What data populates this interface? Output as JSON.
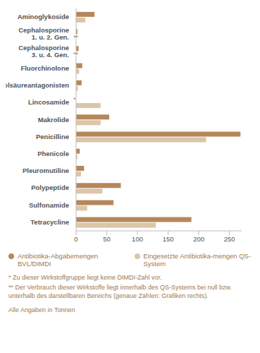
{
  "chart_data": {
    "type": "bar",
    "orientation": "horizontal",
    "categories": [
      "Aminoglykoside",
      "Cephalosporine 1. u. 2. Gen.",
      "Cephalosporine 3. u. 4. Gen.",
      "Fluorchinolone",
      "Folsäureantagonisten",
      "Lincosamide",
      "Makrolide",
      "Penicilline",
      "Phenicole",
      "Pleuromutiline",
      "Polypeptide",
      "Sulfonamide",
      "Tetracycline"
    ],
    "series": [
      {
        "name": "Antibiotika-Abgabemengen BVL/DIMDI",
        "color": "#b5875a",
        "values": [
          30,
          2,
          4,
          10,
          9,
          null,
          54,
          268,
          6,
          13,
          73,
          61,
          188
        ]
      },
      {
        "name": "Eingesetzte Antibiotika-mengen QS-System",
        "color": "#dcc5a8",
        "values": [
          15,
          0,
          0,
          5,
          3,
          40,
          40,
          212,
          2,
          8,
          43,
          18,
          130
        ]
      }
    ],
    "xlim": [
      0,
      270
    ],
    "xticks": [
      0,
      50,
      100,
      150,
      200,
      250
    ],
    "grid": false,
    "legend": "bottom",
    "annotations": [
      {
        "category": "Lincosamide",
        "series": 0,
        "text": "*"
      },
      {
        "category": "Cephalosporine 1. u. 2. Gen.",
        "series": 1,
        "text": "**"
      },
      {
        "category": "Cephalosporine 3. u. 4. Gen.",
        "series": 1,
        "text": "**"
      }
    ],
    "footnotes": [
      "* Zu dieser Wirkstoffgruppe liegt keine DIMDI-Zahl vor.",
      "** Der Verbrauch dieser Wirkstoffe liegt innerhalb des QS-Systems bei null bzw. unterhalb des darstellbaren Bereichs (genaue Zahlen: Grafiken rechts)."
    ],
    "note": "Alle Angaben in Tonnen"
  }
}
